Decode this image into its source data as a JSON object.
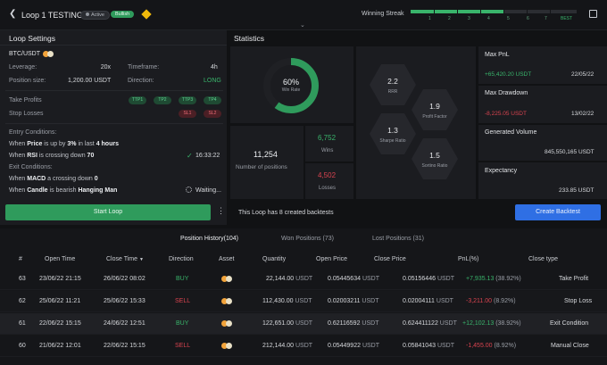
{
  "header": {
    "back_icon": "chevron-left-icon",
    "title": "Loop 1 TESTING",
    "status_badge": "Active",
    "trend_badge": "Bullish",
    "exchange_icon": "binance-icon",
    "winning_streak_label": "Winning Streak",
    "streak_ticks": [
      "1",
      "2",
      "3",
      "4",
      "5",
      "6",
      "7",
      "BEST"
    ],
    "edit_icon": "external-edit-icon"
  },
  "loop_settings": {
    "title": "Loop Settings",
    "pair": "BTC/USDT",
    "leverage_label": "Leverage:",
    "leverage_value": "20x",
    "timeframe_label": "Timeframe:",
    "timeframe_value": "4h",
    "position_size_label": "Position size:",
    "position_size_value": "1,200.00 USDT",
    "direction_label": "Direction:",
    "direction_value": "LONG",
    "take_profits_label": "Take Profits",
    "take_profits": [
      "TTP1",
      "TP2",
      "TTP3",
      "TP4"
    ],
    "stop_losses_label": "Stop Losses",
    "stop_losses": [
      "SL1",
      "SL2"
    ],
    "entry_conditions_label": "Entry Conditions:",
    "entry_c1_a": "When ",
    "entry_c1_b": "Price",
    "entry_c1_c": " is up by ",
    "entry_c1_d": "3%",
    "entry_c1_e": " in last ",
    "entry_c1_f": "4 hours",
    "entry_c2_a": "When ",
    "entry_c2_b": "RSI",
    "entry_c2_c": " is crossing down ",
    "entry_c2_d": "70",
    "entry_c2_time": "16:33:22",
    "exit_conditions_label": "Exit Conditions:",
    "exit_c1_a": "When ",
    "exit_c1_b": "MACD",
    "exit_c1_c": " a crossing down ",
    "exit_c1_d": "0",
    "exit_c2_a": "When ",
    "exit_c2_b": "Candle",
    "exit_c2_c": " is bearish ",
    "exit_c2_d": "Hanging Man",
    "exit_c2_status": "Waiting...",
    "start_button": "Start Loop"
  },
  "statistics": {
    "title": "Statistics",
    "win_rate_value": "60%",
    "win_rate_label": "Win Rate",
    "win_rate_fraction": 0.6,
    "positions_value": "11,254",
    "positions_label": "Number of positions",
    "wins_value": "6,752",
    "wins_label": "Wins",
    "losses_value": "4,502",
    "losses_label": "Losses",
    "rrr_value": "2.2",
    "rrr_label": "RRR",
    "profit_factor_value": "1.9",
    "profit_factor_label": "Profit Factor",
    "sharpe_value": "1.3",
    "sharpe_label": "Sharpe Ratio",
    "sortino_value": "1.5",
    "sortino_label": "Sortino Ratio",
    "backtests_text": "This Loop has 8 created backtests",
    "create_backtest_button": "Create Backtest"
  },
  "side_stats": {
    "max_pnl_label": "Max PnL",
    "max_pnl_value": "+65,420.20 USDT",
    "max_pnl_date": "22/05/22",
    "max_drawdown_label": "Max Drawdown",
    "max_drawdown_value": "-8,225.05 USDT",
    "max_drawdown_date": "13/02/22",
    "generated_volume_label": "Generated Volume",
    "generated_volume_value": "845,550,165 USDT",
    "expectancy_label": "Expectancy",
    "expectancy_value": "233.85 USDT"
  },
  "history_tabs": {
    "position_history": "Position History(104)",
    "won_positions": "Won Positions (73)",
    "lost_positions": "Lost Positions (31)"
  },
  "table": {
    "headers": {
      "num": "#",
      "open_time": "Open Time",
      "close_time": "Close Time",
      "direction": "Direction",
      "asset": "Asset",
      "quantity": "Quantity",
      "open_price": "Open Price",
      "close_price": "Close Price",
      "pnl": "PnL(%)",
      "close_type": "Close type"
    },
    "rows": [
      {
        "num": "63",
        "open_time": "23/06/22 21:15",
        "close_time": "26/06/22 08:02",
        "direction": "BUY",
        "quantity": "22,144.00",
        "qunit": "USDT",
        "open_price": "0.05445634",
        "open_unit": "USDT",
        "close_price": "0.05156446",
        "close_unit": "USDT",
        "pnl": "+7,935.13",
        "pnl_pct": "(38.92%)",
        "close_type": "Take Profit"
      },
      {
        "num": "62",
        "open_time": "25/06/22 11:21",
        "close_time": "25/06/22 15:33",
        "direction": "SELL",
        "quantity": "112,430.00",
        "qunit": "USDT",
        "open_price": "0.02003211",
        "open_unit": "USDT",
        "close_price": "0.02004111",
        "close_unit": "USDT",
        "pnl": "-3,211.00",
        "pnl_pct": "(8.92%)",
        "close_type": "Stop Loss"
      },
      {
        "num": "61",
        "open_time": "22/06/22 15:15",
        "close_time": "24/06/22 12:51",
        "direction": "BUY",
        "quantity": "122,651.00",
        "qunit": "USDT",
        "open_price": "0.62116592",
        "open_unit": "USDT",
        "close_price": "0.624411122",
        "close_unit": "USDT",
        "pnl": "+12,102.13",
        "pnl_pct": "(38.92%)",
        "close_type": "Exit Condition"
      },
      {
        "num": "60",
        "open_time": "21/06/22 12:01",
        "close_time": "22/06/22 15:15",
        "direction": "SELL",
        "quantity": "212,144.00",
        "qunit": "USDT",
        "open_price": "0.05449922",
        "open_unit": "USDT",
        "close_price": "0.05841043",
        "close_unit": "USDT",
        "pnl": "-1,455.00",
        "pnl_pct": "(8.92%)",
        "close_type": "Manual Close"
      }
    ]
  },
  "colors": {
    "accent_green": "#39b46b",
    "accent_red": "#d9434f",
    "primary_blue": "#2f6fe4"
  }
}
